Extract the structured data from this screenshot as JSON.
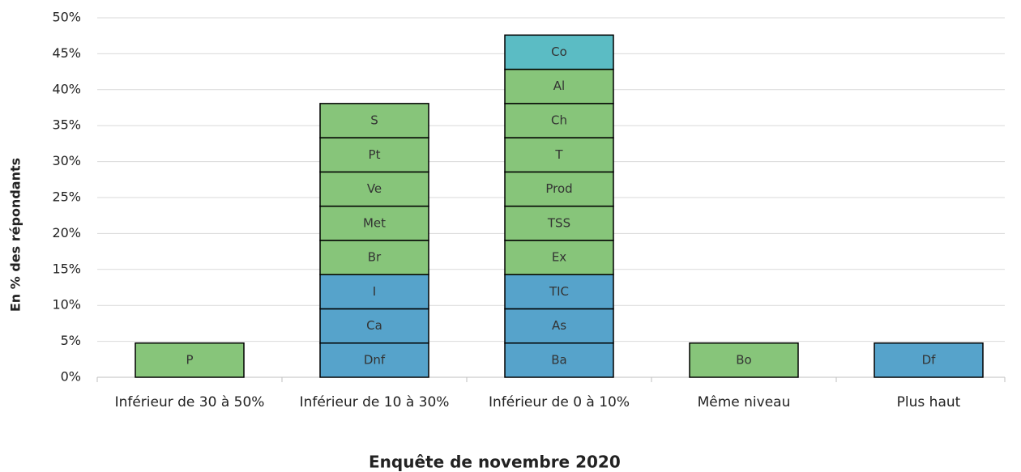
{
  "chart_data": {
    "type": "stacked_bar",
    "x_label": "Enquête de novembre 2020",
    "y_label": "En % des répondants",
    "categories": [
      "Inférieur de 30 à 50%",
      "Inférieur de 10 à 30%",
      "Inférieur de 0 à 10%",
      "Même niveau",
      "Plus haut"
    ],
    "segments": [
      [
        {
          "name": "P",
          "value": 4.76,
          "color": "#87c57a"
        }
      ],
      [
        {
          "name": "Dnf",
          "value": 4.76,
          "color": "#56a3cb"
        },
        {
          "name": "Ca",
          "value": 4.76,
          "color": "#56a3cb"
        },
        {
          "name": "I",
          "value": 4.76,
          "color": "#56a3cb"
        },
        {
          "name": "Br",
          "value": 4.76,
          "color": "#87c57a"
        },
        {
          "name": "Met",
          "value": 4.76,
          "color": "#87c57a"
        },
        {
          "name": "Ve",
          "value": 4.76,
          "color": "#87c57a"
        },
        {
          "name": "Pt",
          "value": 4.76,
          "color": "#87c57a"
        },
        {
          "name": "S",
          "value": 4.76,
          "color": "#87c57a"
        }
      ],
      [
        {
          "name": "Ba",
          "value": 4.76,
          "color": "#56a3cb"
        },
        {
          "name": "As",
          "value": 4.76,
          "color": "#56a3cb"
        },
        {
          "name": "TIC",
          "value": 4.76,
          "color": "#56a3cb"
        },
        {
          "name": "Ex",
          "value": 4.76,
          "color": "#87c57a"
        },
        {
          "name": "TSS",
          "value": 4.76,
          "color": "#87c57a"
        },
        {
          "name": "Prod",
          "value": 4.76,
          "color": "#87c57a"
        },
        {
          "name": "T",
          "value": 4.76,
          "color": "#87c57a"
        },
        {
          "name": "Ch",
          "value": 4.76,
          "color": "#87c57a"
        },
        {
          "name": "Al",
          "value": 4.76,
          "color": "#87c57a"
        },
        {
          "name": "Co",
          "value": 4.76,
          "color": "#5bbcc4"
        }
      ],
      [
        {
          "name": "Bo",
          "value": 4.76,
          "color": "#87c57a"
        }
      ],
      [
        {
          "name": "Df",
          "value": 4.76,
          "color": "#56a3cb"
        }
      ]
    ],
    "ylim": [
      0,
      50
    ],
    "yticks": [
      {
        "value": 0,
        "label": "0%"
      },
      {
        "value": 5,
        "label": "5%"
      },
      {
        "value": 10,
        "label": "10%"
      },
      {
        "value": 15,
        "label": "15%"
      },
      {
        "value": 20,
        "label": "20%"
      },
      {
        "value": 25,
        "label": "25%"
      },
      {
        "value": 30,
        "label": "30%"
      },
      {
        "value": 35,
        "label": "35%"
      },
      {
        "value": 40,
        "label": "40%"
      },
      {
        "value": 45,
        "label": "45%"
      },
      {
        "value": 50,
        "label": "50%"
      }
    ],
    "grid": true
  }
}
